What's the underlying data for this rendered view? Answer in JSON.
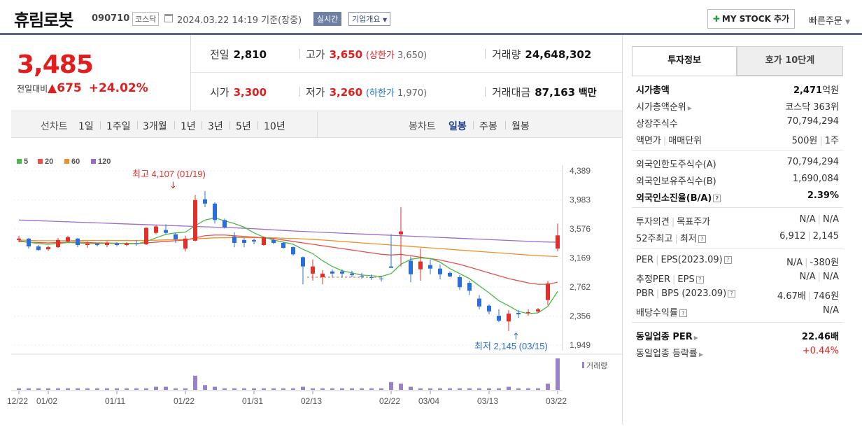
{
  "stock": {
    "name": "휴림로봇",
    "code": "090710",
    "market": "코스닥",
    "datetime": "2024.03.22 14:19",
    "basis": "기준(장중)",
    "realtime": "실시간",
    "overview": "기업개요"
  },
  "actions": {
    "mystock": "MY STOCK 추가",
    "fast_order": "빠른주문"
  },
  "quote": {
    "price": "3,485",
    "prev_label": "전일대비",
    "change": "▲675",
    "change_pct": "+24.02%"
  },
  "summary": {
    "prev": {
      "label": "전일",
      "value": "2,810"
    },
    "high": {
      "label": "고가",
      "value": "3,650",
      "sub_label": "(상한가",
      "sub_value": "3,650",
      "sub_close": ")"
    },
    "volume": {
      "label": "거래량",
      "value": "24,648,302"
    },
    "open": {
      "label": "시가",
      "value": "3,300"
    },
    "low": {
      "label": "저가",
      "value": "3,260",
      "sub_label": "(하한가",
      "sub_value": "1,970",
      "sub_close": ")"
    },
    "amount": {
      "label": "거래대금",
      "value": "87,163",
      "unit": "백만"
    }
  },
  "toolbar": {
    "line_label": "선차트",
    "line_periods": [
      "1일",
      "1주일",
      "3개월",
      "1년",
      "3년",
      "5년",
      "10년"
    ],
    "candle_label": "봉차트",
    "candle_periods": [
      "일봉",
      "주봉",
      "월봉"
    ],
    "selected": "일봉"
  },
  "chart_data": {
    "type": "candlestick",
    "ma_legend": [
      {
        "name": "5",
        "color": "#4db848"
      },
      {
        "name": "20",
        "color": "#e8504a"
      },
      {
        "name": "60",
        "color": "#f0902a"
      },
      {
        "name": "120",
        "color": "#9a6cc8"
      }
    ],
    "y_ticks": [
      "4,389",
      "3,983",
      "3,576",
      "3,169",
      "2,762",
      "2,356",
      "1,949"
    ],
    "ylim": [
      1949,
      4389
    ],
    "x_ticks": [
      "12/22",
      "01/02",
      "01/11",
      "01/22",
      "01/31",
      "02/13",
      "02/22",
      "03/04",
      "03/13",
      "03/22"
    ],
    "high_annotation": "최고 4,107 (01/19)",
    "low_annotation": "최저 2,145 (03/15)",
    "volume_label": "거래량",
    "candles": [
      [
        3420,
        3480,
        3390,
        3440
      ],
      [
        3440,
        3450,
        3300,
        3330
      ],
      [
        3330,
        3350,
        3270,
        3280
      ],
      [
        3290,
        3340,
        3270,
        3320
      ],
      [
        3320,
        3450,
        3310,
        3420
      ],
      [
        3400,
        3480,
        3390,
        3460
      ],
      [
        3440,
        3450,
        3320,
        3350
      ],
      [
        3350,
        3400,
        3310,
        3370
      ],
      [
        3370,
        3380,
        3330,
        3350
      ],
      [
        3350,
        3400,
        3320,
        3380
      ],
      [
        3370,
        3390,
        3330,
        3350
      ],
      [
        3350,
        3390,
        3330,
        3370
      ],
      [
        3370,
        3420,
        3340,
        3360
      ],
      [
        3360,
        3600,
        3350,
        3590
      ],
      [
        3520,
        3630,
        3500,
        3610
      ],
      [
        3560,
        3640,
        3500,
        3520
      ],
      [
        3500,
        3520,
        3380,
        3430
      ],
      [
        3300,
        3480,
        3260,
        3440
      ],
      [
        3410,
        4050,
        3400,
        3980
      ],
      [
        3990,
        4107,
        3880,
        3930
      ],
      [
        3930,
        3950,
        3650,
        3700
      ],
      [
        3700,
        3720,
        3580,
        3600
      ],
      [
        3470,
        3530,
        3320,
        3380
      ],
      [
        3420,
        3450,
        3320,
        3380
      ],
      [
        3420,
        3440,
        3360,
        3400
      ],
      [
        3350,
        3470,
        3340,
        3460
      ],
      [
        3420,
        3440,
        3360,
        3380
      ],
      [
        3380,
        3390,
        3300,
        3310
      ],
      [
        3320,
        3330,
        3200,
        3220
      ],
      [
        3180,
        3190,
        2800,
        3050
      ],
      [
        2950,
        3150,
        2850,
        3050
      ],
      [
        2900,
        3000,
        2800,
        2950
      ],
      [
        2980,
        3010,
        2900,
        2950
      ],
      [
        2980,
        3010,
        2900,
        2950
      ],
      [
        2950,
        2990,
        2900,
        2930
      ],
      [
        2920,
        2960,
        2880,
        2910
      ],
      [
        2900,
        2940,
        2860,
        2890
      ],
      [
        2880,
        2920,
        2840,
        2870
      ],
      [
        3050,
        3500,
        3050,
        3030
      ],
      [
        3500,
        3880,
        3050,
        3540
      ],
      [
        3130,
        3190,
        2830,
        2940
      ],
      [
        3010,
        3300,
        2850,
        3120
      ],
      [
        3070,
        3150,
        2940,
        3020
      ],
      [
        3020,
        3080,
        2870,
        2940
      ],
      [
        2960,
        2980,
        2900,
        2910
      ],
      [
        2900,
        2930,
        2720,
        2760
      ],
      [
        2820,
        2850,
        2650,
        2710
      ],
      [
        2600,
        2650,
        2450,
        2490
      ],
      [
        2500,
        2520,
        2380,
        2420
      ],
      [
        2360,
        2450,
        2270,
        2290
      ],
      [
        2280,
        2440,
        2145,
        2390
      ],
      [
        2400,
        2440,
        2330,
        2380
      ],
      [
        2400,
        2450,
        2360,
        2410
      ],
      [
        2420,
        2470,
        2400,
        2450
      ],
      [
        2580,
        2850,
        2510,
        2810
      ],
      [
        3300,
        3650,
        3260,
        3485
      ]
    ],
    "ma5": [
      3410,
      3390,
      3370,
      3360,
      3370,
      3385,
      3380,
      3370,
      3370,
      3375,
      3370,
      3372,
      3365,
      3400,
      3450,
      3500,
      3520,
      3530,
      3620,
      3700,
      3730,
      3690,
      3650,
      3600,
      3520,
      3460,
      3420,
      3390,
      3360,
      3290,
      3230,
      3130,
      3050,
      2990,
      2960,
      2930,
      2920,
      2910,
      2950,
      3080,
      3150,
      3170,
      3160,
      3110,
      3020,
      2950,
      2880,
      2780,
      2680,
      2570,
      2500,
      2420,
      2390,
      2400,
      2490,
      2700
    ],
    "ma20": [
      3400,
      3390,
      3385,
      3380,
      3385,
      3390,
      3390,
      3385,
      3380,
      3380,
      3375,
      3375,
      3370,
      3380,
      3390,
      3400,
      3410,
      3420,
      3450,
      3480,
      3490,
      3490,
      3480,
      3470,
      3460,
      3450,
      3440,
      3420,
      3400,
      3380,
      3360,
      3340,
      3320,
      3300,
      3280,
      3260,
      3240,
      3220,
      3210,
      3220,
      3200,
      3180,
      3160,
      3140,
      3110,
      3080,
      3040,
      3000,
      2960,
      2920,
      2880,
      2850,
      2820,
      2800,
      2800,
      2830
    ],
    "ma60": [
      3420,
      3415,
      3410,
      3410,
      3410,
      3410,
      3412,
      3412,
      3412,
      3412,
      3412,
      3412,
      3412,
      3414,
      3418,
      3422,
      3425,
      3428,
      3436,
      3444,
      3450,
      3452,
      3454,
      3454,
      3454,
      3452,
      3450,
      3446,
      3442,
      3436,
      3428,
      3420,
      3410,
      3400,
      3390,
      3380,
      3370,
      3360,
      3350,
      3340,
      3330,
      3320,
      3310,
      3300,
      3290,
      3280,
      3270,
      3260,
      3250,
      3240,
      3230,
      3220,
      3210,
      3200,
      3195,
      3190
    ],
    "ma120": [
      3700,
      3695,
      3690,
      3685,
      3680,
      3675,
      3670,
      3665,
      3660,
      3655,
      3650,
      3645,
      3640,
      3635,
      3630,
      3625,
      3620,
      3615,
      3610,
      3605,
      3600,
      3595,
      3590,
      3585,
      3578,
      3570,
      3562,
      3554,
      3546,
      3540,
      3534,
      3528,
      3522,
      3516,
      3510,
      3504,
      3498,
      3492,
      3486,
      3480,
      3474,
      3468,
      3462,
      3456,
      3450,
      3444,
      3438,
      3432,
      3426,
      3420,
      3414,
      3408,
      3402,
      3396,
      3392,
      3390
    ],
    "volumes": [
      1,
      1,
      1,
      1,
      1,
      1,
      1,
      1,
      1,
      1,
      1,
      1,
      1,
      1,
      2,
      2,
      1,
      1,
      9,
      3,
      2,
      1,
      1,
      1,
      1,
      1,
      1,
      1,
      1,
      2,
      1,
      1,
      1,
      1,
      1,
      1,
      1,
      1,
      5,
      4,
      2,
      1,
      1,
      1,
      1,
      1,
      1,
      1,
      1,
      1,
      2,
      1,
      1,
      1,
      4,
      20
    ]
  },
  "tabs": {
    "invest": "투자정보",
    "hoga": "호가 10단계"
  },
  "info": {
    "mcap": {
      "label": "시가총액",
      "value": "2,471",
      "unit": "억원"
    },
    "mcap_rank": {
      "label": "시가총액순위",
      "value": "코스닥 363위"
    },
    "shares": {
      "label": "상장주식수",
      "value": "70,794,294"
    },
    "par": {
      "label": "액면가",
      "label2": "매매단위",
      "value": "500원",
      "value2": "1주"
    },
    "foreign_limit": {
      "label": "외국인한도주식수(A)",
      "value": "70,794,294"
    },
    "foreign_hold": {
      "label": "외국인보유주식수(B)",
      "value": "1,690,084"
    },
    "foreign_rate": {
      "label": "외국인소진율(B/A)",
      "value": "2.39%"
    },
    "opinion": {
      "label": "투자의견",
      "label2": "목표주가",
      "value": "N/A",
      "value2": "N/A"
    },
    "w52": {
      "label": "52주최고",
      "label2": "최저",
      "value": "6,912",
      "value2": "2,145"
    },
    "per": {
      "label": "PER",
      "label2": "EPS(2023.09)",
      "value": "N/A",
      "value2": "-380원"
    },
    "eper": {
      "label": "추정PER",
      "label2": "EPS",
      "value": "N/A",
      "value2": "N/A"
    },
    "pbr": {
      "label": "PBR",
      "label2": "BPS (2023.09)",
      "value": "4.67배",
      "value2": "746원"
    },
    "div": {
      "label": "배당수익률",
      "value": "N/A"
    },
    "sector_per": {
      "label": "동일업종 PER",
      "value": "22.46배"
    },
    "sector_chg": {
      "label": "동일업종 등락률",
      "value": "+0.44%"
    }
  }
}
